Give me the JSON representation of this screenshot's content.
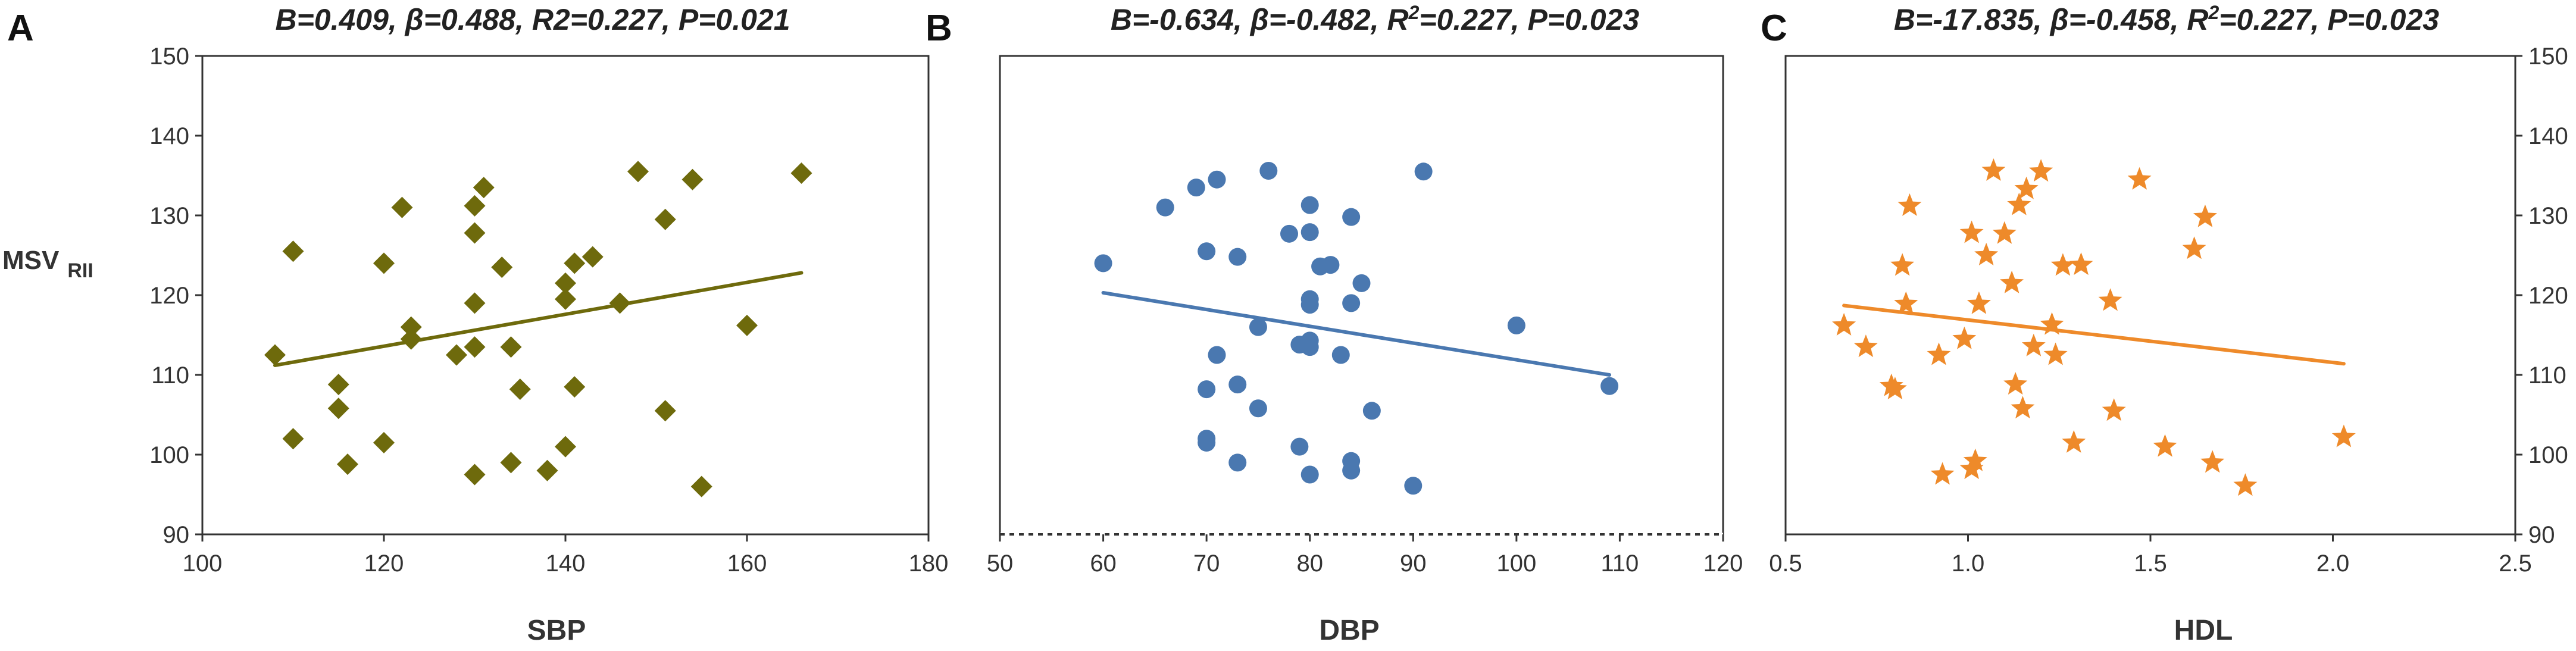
{
  "chart_data": [
    {
      "type": "scatter",
      "panel_label": "A",
      "title": "B=0.409, β=0.488, R2=0.227, P=0.021",
      "title_parts": [
        {
          "text": "B=0.409, β=0.488, R2=0.227, P=0.021",
          "sup": false
        }
      ],
      "xlabel": "SBP",
      "ylabel": "MSV",
      "ylabel_sub": "RII",
      "xlim": [
        100,
        180
      ],
      "ylim": [
        90,
        150
      ],
      "xticks": [
        100,
        120,
        140,
        160,
        180
      ],
      "yticks": [
        90,
        100,
        110,
        120,
        130,
        140,
        150
      ],
      "y_axis_side": "left",
      "marker": "diamond",
      "color": "#6e6a0c",
      "line_color": "#6e6a0c",
      "trend": [
        [
          108,
          111.2
        ],
        [
          166,
          122.8
        ]
      ],
      "points": [
        [
          108,
          112.5
        ],
        [
          110,
          125.5
        ],
        [
          110,
          102
        ],
        [
          115,
          108.8
        ],
        [
          115,
          105.8
        ],
        [
          116,
          98.8
        ],
        [
          120,
          124
        ],
        [
          120,
          101.5
        ],
        [
          122,
          131
        ],
        [
          123,
          116
        ],
        [
          123,
          114.5
        ],
        [
          128,
          112.5
        ],
        [
          130,
          131.2
        ],
        [
          130,
          127.8
        ],
        [
          130,
          119
        ],
        [
          130,
          113.5
        ],
        [
          130,
          97.5
        ],
        [
          131,
          133.5
        ],
        [
          133,
          123.5
        ],
        [
          134,
          113.5
        ],
        [
          134,
          99
        ],
        [
          135,
          108.2
        ],
        [
          138,
          98
        ],
        [
          140,
          121.5
        ],
        [
          140,
          119.5
        ],
        [
          140,
          101
        ],
        [
          141,
          124
        ],
        [
          141,
          108.5
        ],
        [
          143,
          124.8
        ],
        [
          146,
          119
        ],
        [
          148,
          135.5
        ],
        [
          151,
          129.5
        ],
        [
          151,
          105.5
        ],
        [
          154,
          134.5
        ],
        [
          155,
          96
        ],
        [
          160,
          116.2
        ],
        [
          166,
          135.3
        ]
      ]
    },
    {
      "type": "scatter",
      "panel_label": "B",
      "title": "B=-0.634, β=-0.482, R2=0.227, P=0.023",
      "title_parts": [
        {
          "text": "B=-0.634, β=-0.482, R",
          "sup": false
        },
        {
          "text": "2",
          "sup": true
        },
        {
          "text": "=0.227, P=0.023",
          "sup": false
        }
      ],
      "xlabel": "DBP",
      "ylabel": "",
      "ylabel_sub": "",
      "xlim": [
        50,
        120
      ],
      "ylim": [
        90,
        150
      ],
      "xticks": [
        50,
        60,
        70,
        80,
        90,
        100,
        110,
        120
      ],
      "yticks": [],
      "y_axis_side": "left",
      "marker": "circle",
      "color": "#4a78b0",
      "line_color": "#4a78b0",
      "trend": [
        [
          60,
          120.3
        ],
        [
          109,
          110
        ]
      ],
      "points": [
        [
          60,
          124
        ],
        [
          66,
          131
        ],
        [
          69,
          133.5
        ],
        [
          70,
          125.5
        ],
        [
          70,
          108.2
        ],
        [
          70,
          102
        ],
        [
          70,
          101.5
        ],
        [
          71,
          134.5
        ],
        [
          71,
          112.5
        ],
        [
          73,
          124.8
        ],
        [
          73,
          108.8
        ],
        [
          73,
          99
        ],
        [
          75,
          116
        ],
        [
          75,
          105.8
        ],
        [
          76,
          135.6
        ],
        [
          78,
          127.7
        ],
        [
          79,
          113.8
        ],
        [
          79,
          101
        ],
        [
          80,
          131.3
        ],
        [
          80,
          127.9
        ],
        [
          80,
          119.5
        ],
        [
          80,
          118.8
        ],
        [
          80,
          114.3
        ],
        [
          80,
          113.5
        ],
        [
          80,
          97.5
        ],
        [
          81,
          123.6
        ],
        [
          82,
          123.8
        ],
        [
          83,
          112.5
        ],
        [
          84,
          129.8
        ],
        [
          84,
          119
        ],
        [
          84,
          99.2
        ],
        [
          84,
          98
        ],
        [
          85,
          121.5
        ],
        [
          86,
          105.5
        ],
        [
          90,
          96.1
        ],
        [
          91,
          135.5
        ],
        [
          100,
          116.2
        ],
        [
          109,
          108.6
        ]
      ]
    },
    {
      "type": "scatter",
      "panel_label": "C",
      "title": "B=-17.835, β=-0.458, R2=0.227, P=0.023",
      "title_parts": [
        {
          "text": "B=-17.835, β=-0.458, R",
          "sup": false
        },
        {
          "text": "2",
          "sup": true
        },
        {
          "text": "=0.227, P=0.023",
          "sup": false
        }
      ],
      "xlabel": "HDL",
      "ylabel": "",
      "ylabel_sub": "",
      "xlim": [
        0.5,
        2.5
      ],
      "ylim": [
        90,
        150
      ],
      "xticks": [
        0.5,
        1.0,
        1.5,
        2.0,
        2.5
      ],
      "yticks": [
        90,
        100,
        110,
        120,
        130,
        140,
        150
      ],
      "y_axis_side": "right",
      "marker": "star",
      "color": "#ee8a2a",
      "line_color": "#ee8a2a",
      "trend": [
        [
          0.66,
          118.7
        ],
        [
          2.03,
          111.4
        ]
      ],
      "points": [
        [
          0.66,
          116.2
        ],
        [
          0.72,
          113.5
        ],
        [
          0.79,
          108.6
        ],
        [
          0.8,
          108.2
        ],
        [
          0.82,
          123.7
        ],
        [
          0.83,
          118.9
        ],
        [
          0.84,
          131.2
        ],
        [
          0.92,
          112.5
        ],
        [
          0.93,
          97.5
        ],
        [
          0.99,
          114.5
        ],
        [
          1.01,
          127.8
        ],
        [
          1.01,
          98.2
        ],
        [
          1.02,
          99.2
        ],
        [
          1.03,
          118.9
        ],
        [
          1.05,
          125
        ],
        [
          1.07,
          135.6
        ],
        [
          1.1,
          127.7
        ],
        [
          1.12,
          121.5
        ],
        [
          1.13,
          108.8
        ],
        [
          1.14,
          131.3
        ],
        [
          1.15,
          105.8
        ],
        [
          1.16,
          133.3
        ],
        [
          1.18,
          113.6
        ],
        [
          1.2,
          135.5
        ],
        [
          1.23,
          116.3
        ],
        [
          1.24,
          112.5
        ],
        [
          1.26,
          123.7
        ],
        [
          1.29,
          101.5
        ],
        [
          1.31,
          123.8
        ],
        [
          1.39,
          119.3
        ],
        [
          1.4,
          105.5
        ],
        [
          1.47,
          134.5
        ],
        [
          1.54,
          101
        ],
        [
          1.62,
          125.8
        ],
        [
          1.65,
          129.8
        ],
        [
          1.67,
          99
        ],
        [
          1.76,
          96.1
        ],
        [
          2.03,
          102.2
        ]
      ]
    }
  ]
}
